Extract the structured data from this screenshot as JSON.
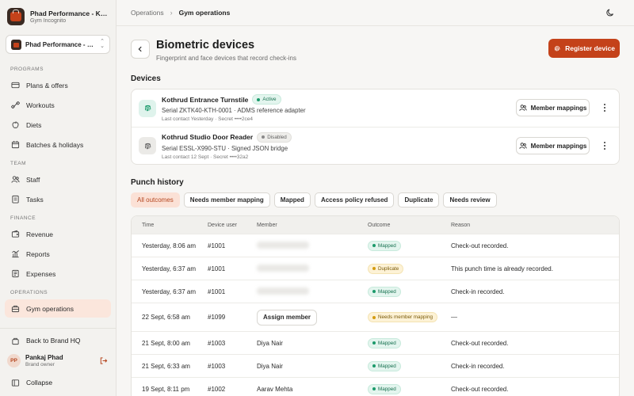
{
  "sidebar": {
    "brand_name": "Phad Performance - Kothrud",
    "brand_sub": "Gym Incognito",
    "switcher_label": "Phad Performance - Kothrud",
    "sections": [
      {
        "label": "PROGRAMS",
        "items": [
          {
            "label": "Plans & offers",
            "icon": "tag-icon"
          },
          {
            "label": "Workouts",
            "icon": "dumbbell-icon"
          },
          {
            "label": "Diets",
            "icon": "apple-icon"
          },
          {
            "label": "Batches & holidays",
            "icon": "calendar-icon"
          }
        ]
      },
      {
        "label": "TEAM",
        "items": [
          {
            "label": "Staff",
            "icon": "users-icon"
          },
          {
            "label": "Tasks",
            "icon": "checklist-icon"
          }
        ]
      },
      {
        "label": "FINANCE",
        "items": [
          {
            "label": "Revenue",
            "icon": "wallet-icon"
          },
          {
            "label": "Reports",
            "icon": "bar-chart-icon"
          },
          {
            "label": "Expenses",
            "icon": "receipt-icon"
          }
        ]
      },
      {
        "label": "OPERATIONS",
        "items": [
          {
            "label": "Gym operations",
            "icon": "briefcase-icon",
            "active": true
          }
        ]
      }
    ],
    "back_label": "Back to Brand HQ",
    "user": {
      "initials": "PP",
      "name": "Pankaj Phad",
      "role": "Brand owner"
    },
    "collapse_label": "Collapse"
  },
  "header": {
    "breadcrumb": [
      "Operations",
      "Gym operations"
    ]
  },
  "page": {
    "title": "Biometric devices",
    "subtitle": "Fingerprint and face devices that record check-ins",
    "register_label": "Register device"
  },
  "devices": {
    "title": "Devices",
    "map_label": "Member mappings",
    "items": [
      {
        "name": "Kothrud Entrance Turnstile",
        "status": "Active",
        "serial": "Serial ZKTK40-KTH-0001 · ADMS reference adapter",
        "contact": "Last contact Yesterday · Secret ••••2ce4"
      },
      {
        "name": "Kothrud Studio Door Reader",
        "status": "Disabled",
        "serial": "Serial ESSL-X990-STU · Signed JSON bridge",
        "contact": "Last contact 12 Sept · Secret ••••32a2"
      }
    ]
  },
  "punch": {
    "title": "Punch history",
    "filters": [
      "All outcomes",
      "Needs member mapping",
      "Mapped",
      "Access policy refused",
      "Duplicate",
      "Needs review"
    ],
    "columns": {
      "time": "Time",
      "device_user": "Device user",
      "member": "Member",
      "outcome": "Outcome",
      "reason": "Reason"
    },
    "assign_label": "Assign member",
    "rows": [
      {
        "time": "Yesterday, 8:06 am",
        "device_user": "#1001",
        "member": "",
        "outcome": "Mapped",
        "reason": "Check-out recorded."
      },
      {
        "time": "Yesterday, 6:37 am",
        "device_user": "#1001",
        "member": "",
        "outcome": "Duplicate",
        "reason": "This punch time is already recorded."
      },
      {
        "time": "Yesterday, 6:37 am",
        "device_user": "#1001",
        "member": "",
        "outcome": "Mapped",
        "reason": "Check-in recorded."
      },
      {
        "time": "22 Sept, 6:58 am",
        "device_user": "#1099",
        "member": "",
        "outcome": "Needs member mapping",
        "reason": "—"
      },
      {
        "time": "21 Sept, 8:00 am",
        "device_user": "#1003",
        "member": "Diya Nair",
        "outcome": "Mapped",
        "reason": "Check-out recorded."
      },
      {
        "time": "21 Sept, 6:33 am",
        "device_user": "#1003",
        "member": "Diya Nair",
        "outcome": "Mapped",
        "reason": "Check-in recorded."
      },
      {
        "time": "19 Sept, 8:11 pm",
        "device_user": "#1002",
        "member": "Aarav Mehta",
        "outcome": "Mapped",
        "reason": "Check-out recorded."
      }
    ]
  },
  "colors": {
    "accent": "#c4421a",
    "active_bg": "#fbe6dc",
    "mapped": "#1b9a6b",
    "warning": "#d49b10"
  }
}
